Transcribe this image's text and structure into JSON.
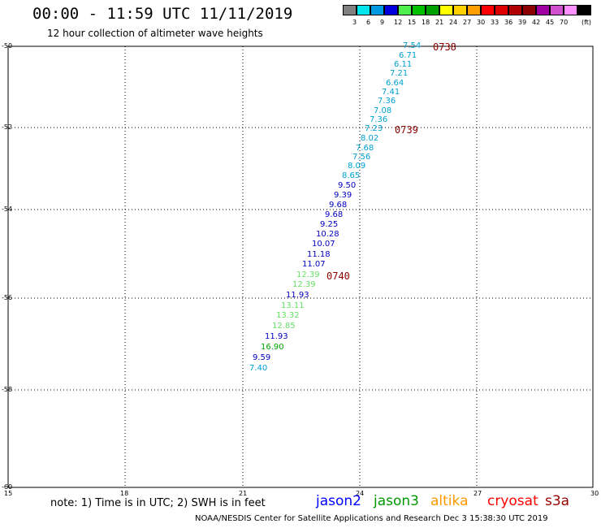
{
  "header": {
    "title": "00:00 - 11:59 UTC 11/11/2019",
    "subtitle": "12 hour collection of altimeter wave heights"
  },
  "legend": {
    "colors": [
      "#808080",
      "#00e5ee",
      "#009ae0",
      "#0000dd",
      "#4fef4f",
      "#00c000",
      "#00a000",
      "#ffff00",
      "#ffd000",
      "#ffa000",
      "#ff0000",
      "#dd0000",
      "#b00000",
      "#8b0000",
      "#a000a0",
      "#d050d0",
      "#ff90ff",
      "#000000"
    ],
    "labels": [
      "3",
      "6",
      "9",
      "12",
      "15",
      "18",
      "21",
      "24",
      "27",
      "30",
      "33",
      "36",
      "39",
      "42",
      "45",
      "70"
    ],
    "unit": "(ft)"
  },
  "axes": {
    "lat_ticks": [
      "-50",
      "-52",
      "-54",
      "-56",
      "-58",
      "-60"
    ],
    "lon_ticks": [
      "15",
      "18",
      "21",
      "24",
      "27",
      "30"
    ]
  },
  "times": [
    "0738",
    "0739",
    "0740"
  ],
  "observations": [
    {
      "v": "7.54",
      "c": "#00a0d0"
    },
    {
      "v": "6.71",
      "c": "#00a0d0"
    },
    {
      "v": "6.11",
      "c": "#00a0d0"
    },
    {
      "v": "7.21",
      "c": "#00a0d0"
    },
    {
      "v": "6.64",
      "c": "#00a0d0"
    },
    {
      "v": "7.41",
      "c": "#00a0d0"
    },
    {
      "v": "7.36",
      "c": "#00a0d0"
    },
    {
      "v": "7.08",
      "c": "#00a0d0"
    },
    {
      "v": "7.36",
      "c": "#00a0d0"
    },
    {
      "v": "7.23",
      "c": "#00a0d0"
    },
    {
      "v": "8.02",
      "c": "#00a0d0"
    },
    {
      "v": "7.68",
      "c": "#00a0d0"
    },
    {
      "v": "7.56",
      "c": "#00a0d0"
    },
    {
      "v": "8.09",
      "c": "#00a0d0"
    },
    {
      "v": "8.65",
      "c": "#00a0d0"
    },
    {
      "v": "9.50",
      "c": "#0000c0"
    },
    {
      "v": "9.39",
      "c": "#0000c0"
    },
    {
      "v": "9.68",
      "c": "#0000c0"
    },
    {
      "v": "9.68",
      "c": "#0000c0"
    },
    {
      "v": "9.25",
      "c": "#0000c0"
    },
    {
      "v": "10.28",
      "c": "#0000c0"
    },
    {
      "v": "10.07",
      "c": "#0000c0"
    },
    {
      "v": "11.18",
      "c": "#0000c0"
    },
    {
      "v": "11.07",
      "c": "#0000c0"
    },
    {
      "v": "12.39",
      "c": "#66e066"
    },
    {
      "v": "12.39",
      "c": "#66e066"
    },
    {
      "v": "11.93",
      "c": "#0000c0"
    },
    {
      "v": "13.11",
      "c": "#66e066"
    },
    {
      "v": "13.32",
      "c": "#66e066"
    },
    {
      "v": "12.85",
      "c": "#66e066"
    },
    {
      "v": "11.93",
      "c": "#0000c0"
    },
    {
      "v": "16.90",
      "c": "#00a000"
    },
    {
      "v": "9.59",
      "c": "#0000c0"
    },
    {
      "v": "7.40",
      "c": "#00a0d0"
    }
  ],
  "footer": {
    "note": "note: 1) Time is in UTC; 2) SWH is in feet",
    "satellites": [
      {
        "name": "jason2",
        "color": "#0000ff"
      },
      {
        "name": "jason3",
        "color": "#009900"
      },
      {
        "name": "altika",
        "color": "#ff9900"
      },
      {
        "name": "cryosat",
        "color": "#ff0000"
      },
      {
        "name": "s3a",
        "color": "#990000"
      }
    ],
    "credit": "NOAA/NESDIS Center for Satellite Applications and Research   Dec  3 15:38:30 UTC 2019"
  }
}
